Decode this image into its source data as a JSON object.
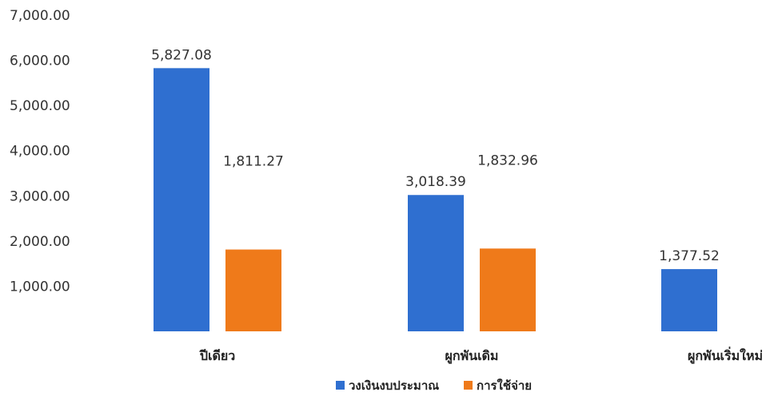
{
  "chart_data": {
    "type": "bar",
    "categories": [
      "ปีเดียว",
      "ผูกพันเดิม",
      "ผูกพันเริ่มใหม่"
    ],
    "series": [
      {
        "name": "วงเงินงบประมาณ",
        "color": "#2f6fd0",
        "values": [
          5827.08,
          3018.39,
          1377.52
        ],
        "labels": [
          "5,827.08",
          "3,018.39",
          "1,377.52"
        ]
      },
      {
        "name": "การใช้จ่าย",
        "color": "#ef7a1a",
        "values": [
          1811.27,
          1832.96,
          null
        ],
        "labels": [
          "1,811.27",
          "1,832.96",
          ""
        ]
      }
    ],
    "ylim": [
      0,
      7000
    ],
    "yticks": [
      1000,
      2000,
      3000,
      4000,
      5000,
      6000,
      7000
    ],
    "ytick_labels": [
      "1,000.00",
      "2,000.00",
      "3,000.00",
      "4,000.00",
      "5,000.00",
      "6,000.00",
      "7,000.00"
    ],
    "legend_position": "bottom",
    "grid": false,
    "title": "",
    "xlabel": "",
    "ylabel": ""
  }
}
